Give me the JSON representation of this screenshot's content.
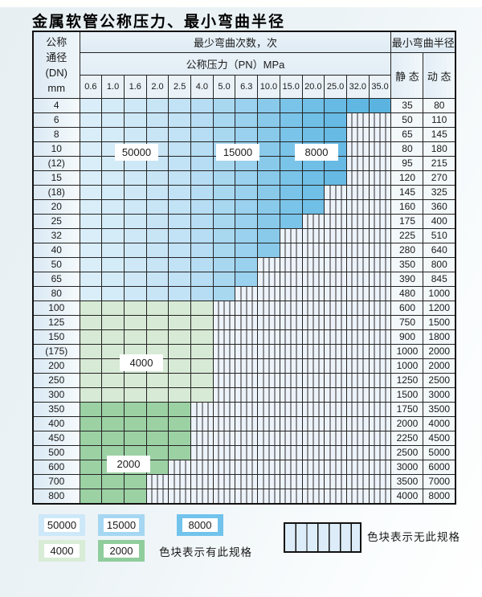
{
  "title": "金属软管公称压力、最小弯曲半径",
  "table": {
    "corner_lines": [
      "公称",
      "通径",
      "(DN)",
      "mm"
    ],
    "span_bend": "最少弯曲次数，次",
    "span_pressure": "公称压力（PN）MPa",
    "span_radius": "最小弯曲半径",
    "static_label": "静 态",
    "dynamic_label": "动 态",
    "pressures": [
      "0.6",
      "1.0",
      "1.6",
      "2.0",
      "2.5",
      "4.0",
      "5.0",
      "6.3",
      "10.0",
      "15.0",
      "20.0",
      "25.0",
      "32.0",
      "35.0"
    ],
    "rows": [
      {
        "dn": "4",
        "colored": 14,
        "band": "blue",
        "static": "35",
        "dynamic": "80"
      },
      {
        "dn": "6",
        "colored": 12,
        "band": "blue",
        "static": "50",
        "dynamic": "110"
      },
      {
        "dn": "8",
        "colored": 12,
        "band": "blue",
        "static": "65",
        "dynamic": "145"
      },
      {
        "dn": "10",
        "colored": 12,
        "band": "blue",
        "static": "80",
        "dynamic": "180"
      },
      {
        "dn": "(12)",
        "colored": 12,
        "band": "blue",
        "static": "95",
        "dynamic": "215"
      },
      {
        "dn": "15",
        "colored": 12,
        "band": "blue",
        "static": "120",
        "dynamic": "270"
      },
      {
        "dn": "(18)",
        "colored": 11,
        "band": "blue",
        "static": "145",
        "dynamic": "325"
      },
      {
        "dn": "20",
        "colored": 11,
        "band": "blue",
        "static": "160",
        "dynamic": "360"
      },
      {
        "dn": "25",
        "colored": 10,
        "band": "blue",
        "static": "175",
        "dynamic": "400"
      },
      {
        "dn": "32",
        "colored": 9,
        "band": "blue",
        "static": "225",
        "dynamic": "510"
      },
      {
        "dn": "40",
        "colored": 9,
        "band": "blue",
        "static": "280",
        "dynamic": "640"
      },
      {
        "dn": "50",
        "colored": 8,
        "band": "blue",
        "static": "350",
        "dynamic": "800"
      },
      {
        "dn": "65",
        "colored": 8,
        "band": "blue",
        "static": "390",
        "dynamic": "845"
      },
      {
        "dn": "80",
        "colored": 7,
        "band": "blue",
        "static": "480",
        "dynamic": "1000"
      },
      {
        "dn": "100",
        "colored": 6,
        "band": "green_light",
        "static": "600",
        "dynamic": "1200"
      },
      {
        "dn": "125",
        "colored": 6,
        "band": "green_light",
        "static": "750",
        "dynamic": "1500"
      },
      {
        "dn": "150",
        "colored": 6,
        "band": "green_light",
        "static": "900",
        "dynamic": "1800"
      },
      {
        "dn": "(175)",
        "colored": 6,
        "band": "green_light",
        "static": "1000",
        "dynamic": "2000"
      },
      {
        "dn": "200",
        "colored": 6,
        "band": "green_light",
        "static": "1000",
        "dynamic": "2000"
      },
      {
        "dn": "250",
        "colored": 6,
        "band": "green_light",
        "static": "1250",
        "dynamic": "2500"
      },
      {
        "dn": "300",
        "colored": 6,
        "band": "green_light",
        "static": "1500",
        "dynamic": "3000"
      },
      {
        "dn": "350",
        "colored": 5,
        "band": "green_dark",
        "static": "1750",
        "dynamic": "3500"
      },
      {
        "dn": "400",
        "colored": 5,
        "band": "green_dark",
        "static": "2000",
        "dynamic": "4000"
      },
      {
        "dn": "450",
        "colored": 5,
        "band": "green_dark",
        "static": "2250",
        "dynamic": "4500"
      },
      {
        "dn": "500",
        "colored": 5,
        "band": "green_dark",
        "static": "2500",
        "dynamic": "5000"
      },
      {
        "dn": "600",
        "colored": 4,
        "band": "green_dark",
        "static": "3000",
        "dynamic": "6000"
      },
      {
        "dn": "700",
        "colored": 3,
        "band": "green_dark",
        "static": "3500",
        "dynamic": "7000"
      },
      {
        "dn": "800",
        "colored": 3,
        "band": "green_dark",
        "static": "4000",
        "dynamic": "8000"
      }
    ]
  },
  "overlays": {
    "cycles_50000": "50000",
    "cycles_15000": "15000",
    "cycles_8000": "8000",
    "cycles_4000": "4000",
    "cycles_2000": "2000"
  },
  "legend": {
    "swatches": [
      {
        "label": "50000",
        "color": "#cde8f8"
      },
      {
        "label": "15000",
        "color": "#a6d7f2"
      },
      {
        "label": "8000",
        "color": "#72c3ec"
      },
      {
        "label": "4000",
        "color": "#d8ecd6"
      },
      {
        "label": "2000",
        "color": "#90cd9d"
      }
    ],
    "has_spec": "色块表示有此规格",
    "no_spec": "色块表示无此规格"
  },
  "colors": {
    "blue_ramp": [
      "#daeefa",
      "#d4ebf8",
      "#cee8f7",
      "#c8e5f6",
      "#c2e2f5",
      "#b6ddf3",
      "#a8d7f0",
      "#9ad1ee",
      "#89caeb",
      "#7bc4e9",
      "#6fbfe6",
      "#66bae4",
      "#60b7e2",
      "#5bb4e0"
    ],
    "green_light": "#d7ead5",
    "green_dark": "#9cd1a4",
    "hatch_background": "#edf3fa"
  }
}
